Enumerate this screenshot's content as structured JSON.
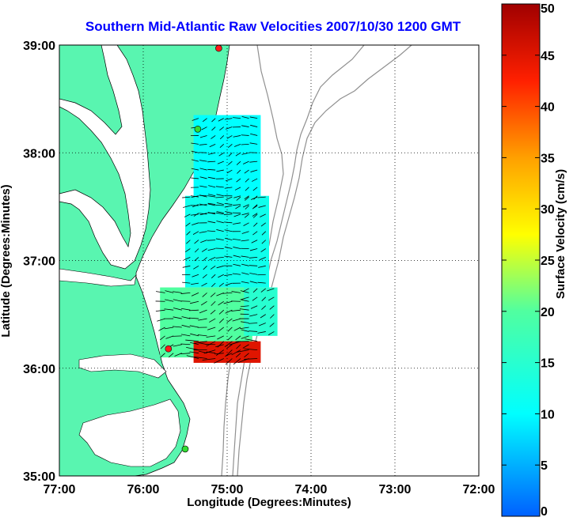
{
  "chart_data": {
    "type": "heatmap",
    "title": "Southern Mid-Atlantic Raw Velocities 2007/10/30 1200 GMT",
    "xlabel": "Longitude (Degrees:Minutes)",
    "ylabel": "Latitude (Degrees:Minutes)",
    "xlim": [
      -77,
      -72
    ],
    "ylim": [
      35,
      39
    ],
    "xticks": [
      {
        "value": -77,
        "label": "77:00"
      },
      {
        "value": -76,
        "label": "76:00"
      },
      {
        "value": -75,
        "label": "75:00"
      },
      {
        "value": -74,
        "label": "74:00"
      },
      {
        "value": -73,
        "label": "73:00"
      },
      {
        "value": -72,
        "label": "72:00"
      }
    ],
    "yticks": [
      {
        "value": 35,
        "label": "35:00"
      },
      {
        "value": 36,
        "label": "36:00"
      },
      {
        "value": 37,
        "label": "37:00"
      },
      {
        "value": 38,
        "label": "38:00"
      },
      {
        "value": 39,
        "label": "39:00"
      }
    ],
    "grid": true,
    "colorbar": {
      "label": "Surface Velocity (cm/s)",
      "min": 0,
      "max": 50,
      "ticks": [
        {
          "value": 0,
          "label": "0"
        },
        {
          "value": 5,
          "label": "5"
        },
        {
          "value": 10,
          "label": "10"
        },
        {
          "value": 15,
          "label": "15"
        },
        {
          "value": 20,
          "label": "20"
        },
        {
          "value": 25,
          "label": "25"
        },
        {
          "value": 30,
          "label": "30"
        },
        {
          "value": 35,
          "label": "35"
        },
        {
          "value": 40,
          "label": "40"
        },
        {
          "value": 45,
          "label": "45"
        },
        {
          "value": 50,
          "label": "50"
        }
      ]
    },
    "stations": [
      {
        "lon": -75.1,
        "lat": 38.97,
        "status": "active"
      },
      {
        "lon": -75.35,
        "lat": 38.22,
        "status": "inactive"
      },
      {
        "lon": -75.7,
        "lat": 36.18,
        "status": "active"
      },
      {
        "lon": -75.5,
        "lat": 35.25,
        "status": "inactive"
      }
    ],
    "velocity_regions": [
      {
        "name": "",
        "lon": [
          -75.4,
          -74.6
        ],
        "lat": [
          37.4,
          38.35
        ],
        "speed": 10
      },
      {
        "name": "",
        "lon": [
          -75.5,
          -74.5
        ],
        "lat": [
          36.75,
          37.6
        ],
        "speed": 12
      },
      {
        "name": "",
        "lon": [
          -75.8,
          -74.7
        ],
        "lat": [
          36.1,
          36.75
        ],
        "speed": 20
      },
      {
        "name": "",
        "lon": [
          -75.4,
          -74.6
        ],
        "lat": [
          36.05,
          36.25
        ],
        "speed": 45
      },
      {
        "name": "",
        "lon": [
          -74.8,
          -74.4
        ],
        "lat": [
          36.3,
          36.75
        ],
        "speed": 15
      }
    ],
    "colors": {
      "land": "#59f5b0",
      "station_active": "#ff1a1a",
      "station_inactive": "#33dd33",
      "bathymetry": "#909090"
    }
  }
}
